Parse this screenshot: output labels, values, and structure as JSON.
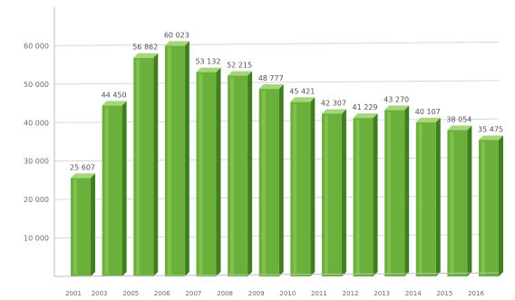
{
  "chart_data": {
    "type": "bar",
    "title": "",
    "xlabel": "",
    "ylabel": "",
    "ylim": [
      0,
      70000
    ],
    "grid": true,
    "legend": "none",
    "colors": {
      "bar_front": "#6ab03b",
      "bar_side": "#3f7f20",
      "bar_top": "#a6d67b",
      "grid": "#d8d8d8",
      "axis": "#bdbdbd",
      "background": "#ffffff"
    },
    "y_ticks": [
      {
        "value": 10000,
        "label": "10 000"
      },
      {
        "value": 20000,
        "label": "20 000"
      },
      {
        "value": 30000,
        "label": "30 000"
      },
      {
        "value": 40000,
        "label": "40 000"
      },
      {
        "value": 50000,
        "label": "50 000"
      },
      {
        "value": 60000,
        "label": "60 000"
      }
    ],
    "categories": [
      "2001",
      "2003",
      "2005",
      "2006",
      "2007",
      "2008",
      "2009",
      "2010",
      "2011",
      "2012",
      "2013",
      "2014",
      "2015",
      "2016"
    ],
    "x_tick_labels": [
      "2001",
      "2003",
      "2005",
      "2006",
      "2007",
      "2008",
      "2009",
      "2010",
      "2011",
      "2012",
      "2013",
      "2014",
      "2015",
      "2016"
    ],
    "values": [
      25607,
      44450,
      56862,
      60023,
      53132,
      52215,
      48777,
      45421,
      42307,
      41229,
      43270,
      40107,
      38054,
      35475
    ],
    "data_labels": [
      "25 607",
      "44 450",
      "56 862",
      "60 023",
      "53 132",
      "52 215",
      "48 777",
      "45 421",
      "42 307",
      "41 229",
      "43 270",
      "40 107",
      "38 054",
      "35 475"
    ]
  }
}
